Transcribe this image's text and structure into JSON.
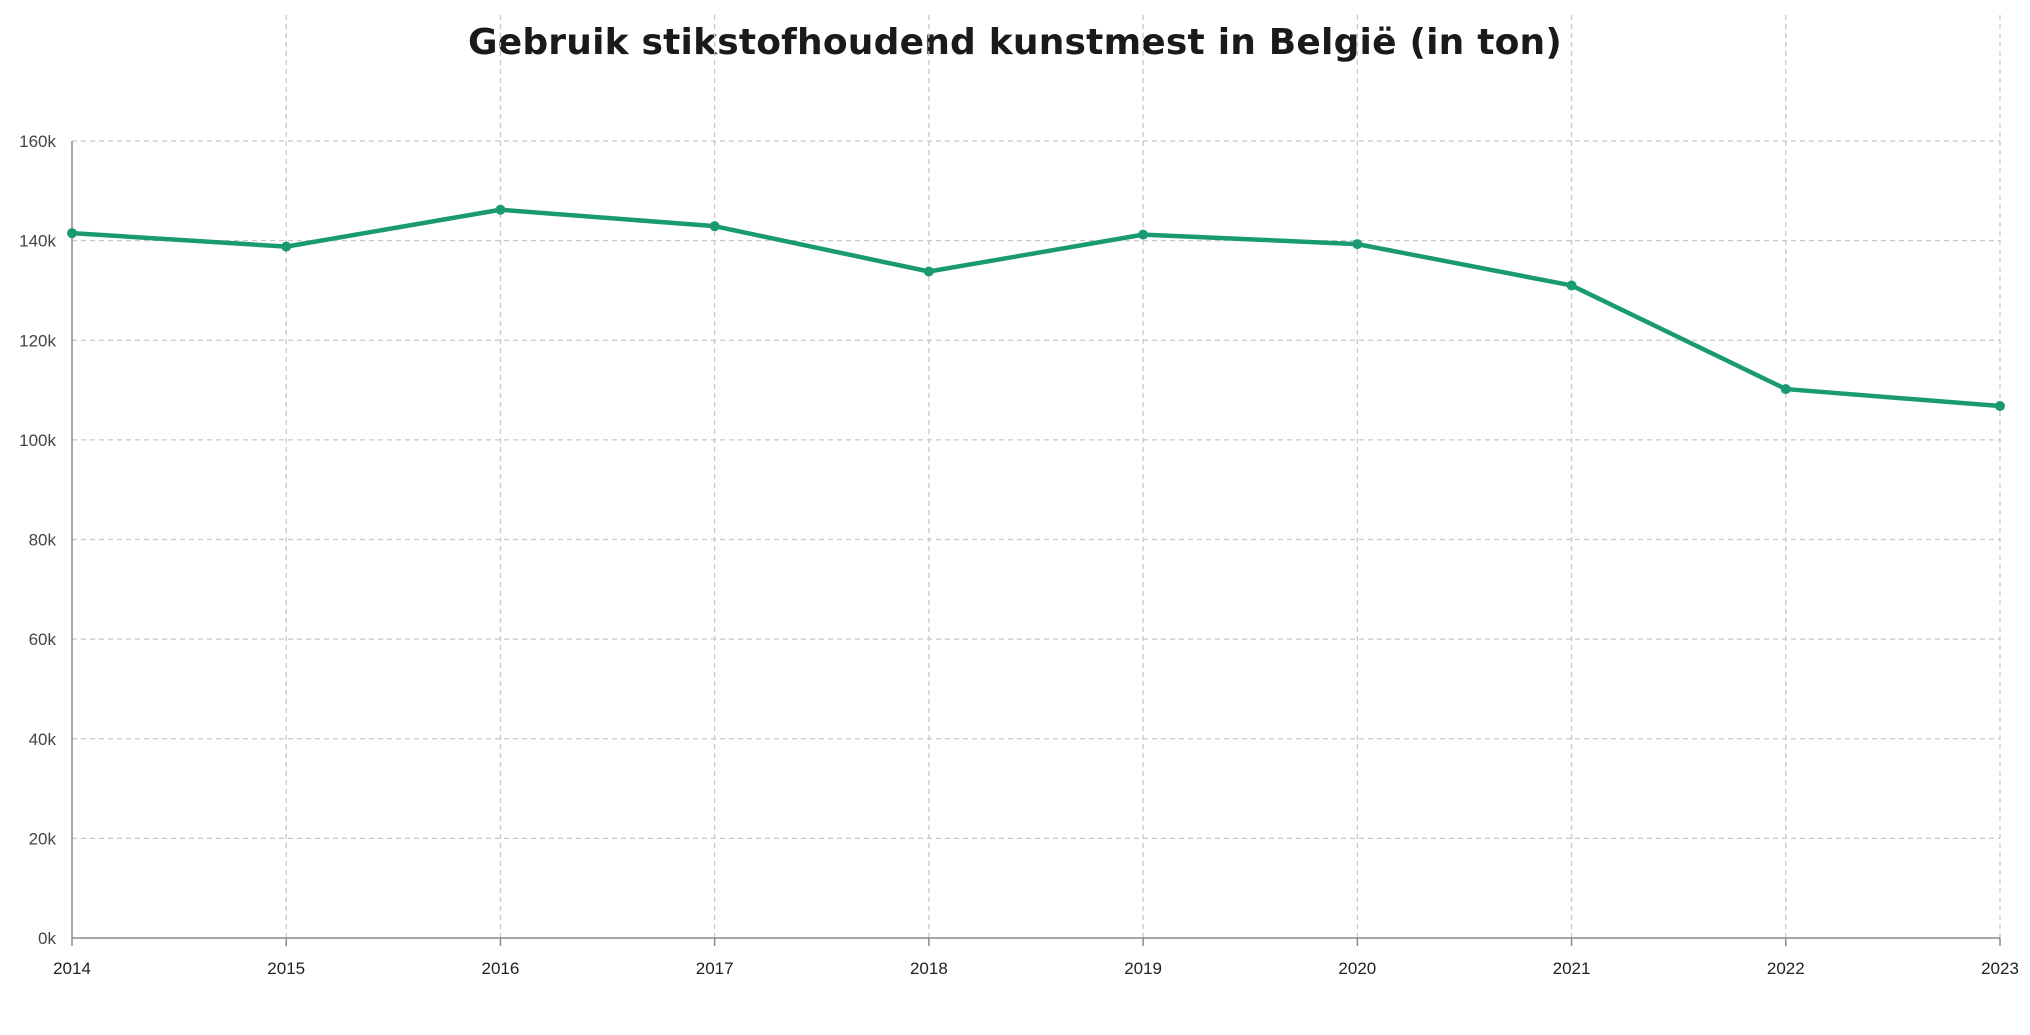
{
  "chart_data": {
    "type": "line",
    "title": "Gebruik stikstofhoudend kunstmest in België (in ton)",
    "xlabel": "",
    "ylabel": "",
    "categories": [
      "2014",
      "2015",
      "2016",
      "2017",
      "2018",
      "2019",
      "2020",
      "2021",
      "2022",
      "2023"
    ],
    "yticks": [
      "0k",
      "20k",
      "40k",
      "60k",
      "80k",
      "100k",
      "120k",
      "140k",
      "160k"
    ],
    "ylim": [
      0,
      160000
    ],
    "grid": true,
    "series": [
      {
        "values": [
          141500,
          138800,
          146200,
          142900,
          133800,
          141200,
          139300,
          131000,
          110200,
          106800
        ],
        "color": "#1a9a72"
      }
    ]
  }
}
